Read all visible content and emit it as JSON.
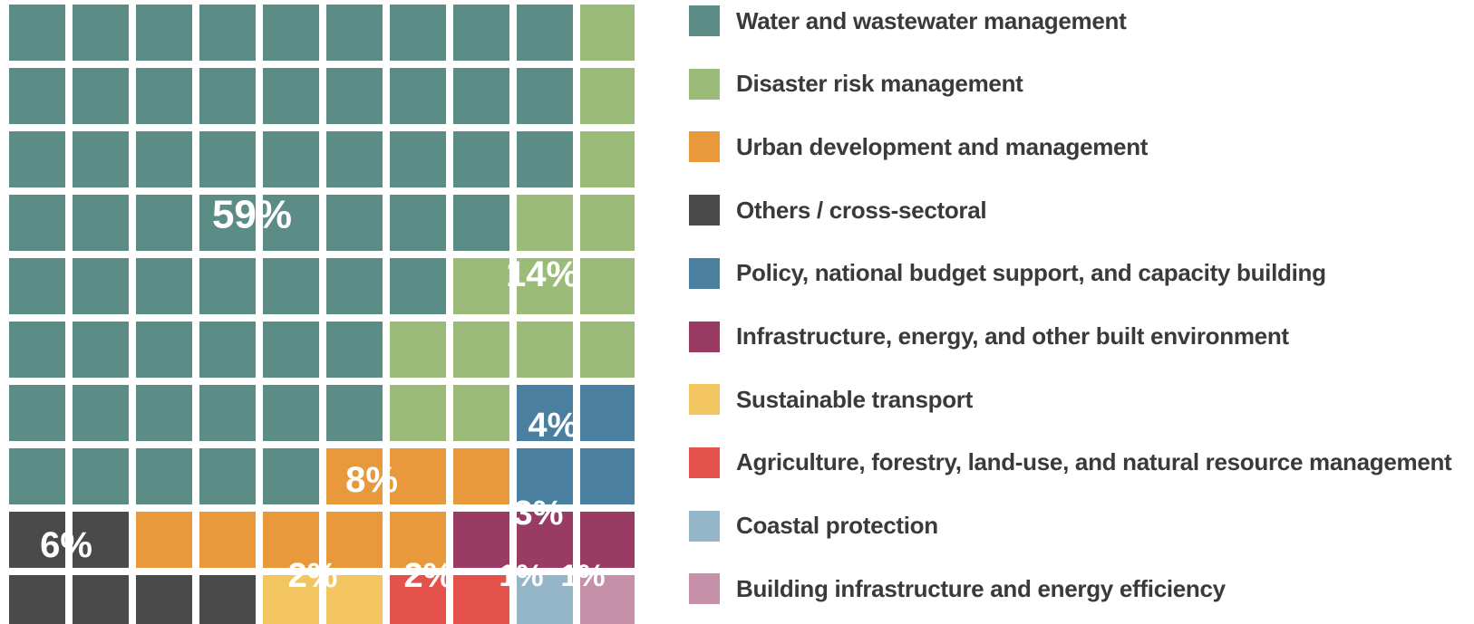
{
  "chart_data": {
    "type": "waffle",
    "grid_rows": 10,
    "grid_cols": 10,
    "unit": "%",
    "legend_position": "right",
    "series": [
      {
        "name": "Water and wastewater management",
        "value": 59,
        "label": "59%",
        "color": "#5b8c86"
      },
      {
        "name": "Disaster risk management",
        "value": 14,
        "label": "14%",
        "color": "#9bbc78"
      },
      {
        "name": "Urban development and management",
        "value": 8,
        "label": "8%",
        "color": "#e8993b"
      },
      {
        "name": "Others / cross-sectoral",
        "value": 6,
        "label": "6%",
        "color": "#4a4a4a"
      },
      {
        "name": "Policy, national budget support, and capacity building",
        "value": 4,
        "label": "4%",
        "color": "#4a7fa0"
      },
      {
        "name": "Infrastructure, energy, and other built environment",
        "value": 3,
        "label": "3%",
        "color": "#9a3b64"
      },
      {
        "name": "Sustainable transport",
        "value": 2,
        "label": "2%",
        "color": "#f2c560"
      },
      {
        "name": "Agriculture, forestry, land-use, and natural resource management",
        "value": 2,
        "label": "2%",
        "color": "#e5524b"
      },
      {
        "name": "Coastal protection",
        "value": 1,
        "label": "1%",
        "color": "#95b5c9"
      },
      {
        "name": "Building infrastructure and energy efficiency",
        "value": 1,
        "label": "1%",
        "color": "#c690a9"
      }
    ]
  }
}
